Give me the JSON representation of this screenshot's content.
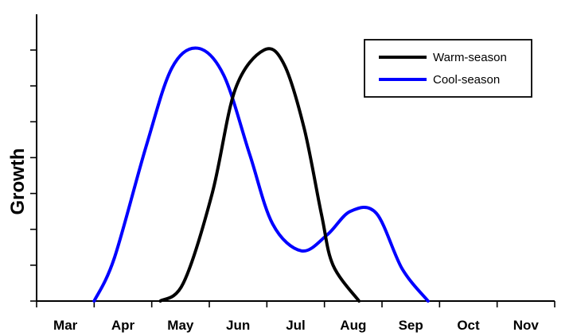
{
  "chart_data": {
    "type": "line",
    "ylabel": "Growth",
    "xlabel": "",
    "categories": [
      "Mar",
      "Apr",
      "May",
      "Jun",
      "Jul",
      "Aug",
      "Sep",
      "Oct",
      "Nov"
    ],
    "ylim": [
      0,
      7
    ],
    "y_tick_count": 8,
    "y_tick_labels_shown": false,
    "legend_position": "top-right",
    "grid": false,
    "series": [
      {
        "name": "Warm-season",
        "color": "#000000",
        "points": [
          [
            1.65,
            0.0
          ],
          [
            2.05,
            0.5
          ],
          [
            2.55,
            3.0
          ],
          [
            2.95,
            5.9
          ],
          [
            3.45,
            7.0
          ],
          [
            3.8,
            6.6
          ],
          [
            4.15,
            4.8
          ],
          [
            4.45,
            2.4
          ],
          [
            4.65,
            1.0
          ],
          [
            5.1,
            0.0
          ]
        ]
      },
      {
        "name": "Cool-season",
        "color": "#0000ff",
        "points": [
          [
            0.5,
            0.0
          ],
          [
            0.85,
            1.2
          ],
          [
            1.4,
            4.3
          ],
          [
            1.85,
            6.5
          ],
          [
            2.3,
            7.05
          ],
          [
            2.75,
            6.3
          ],
          [
            3.2,
            4.1
          ],
          [
            3.6,
            2.15
          ],
          [
            4.1,
            1.4
          ],
          [
            4.55,
            1.85
          ],
          [
            4.95,
            2.5
          ],
          [
            5.4,
            2.45
          ],
          [
            5.85,
            0.9
          ],
          [
            6.3,
            0.0
          ]
        ]
      }
    ]
  }
}
